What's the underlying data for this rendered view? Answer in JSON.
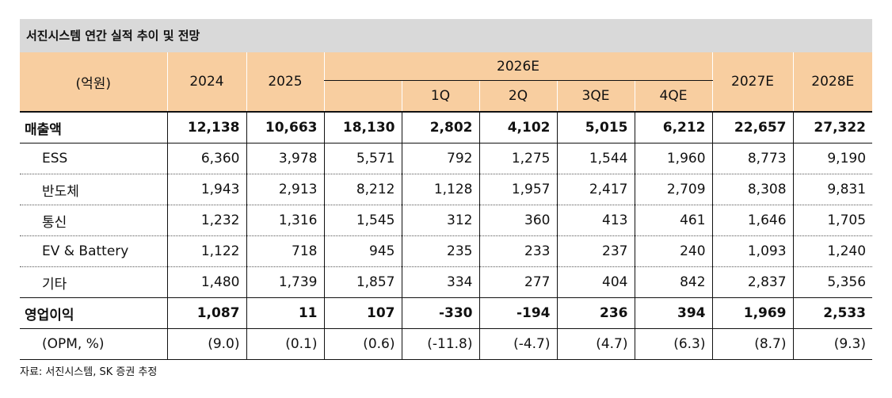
{
  "title": "서진시스템 연간 실적 추이 및 전망",
  "header": {
    "unit_label": "(억원)",
    "years": [
      "2024",
      "2025"
    ],
    "group_label": "2026E",
    "quarters": [
      "1Q",
      "2Q",
      "3QE",
      "4QE"
    ],
    "future_years": [
      "2027E",
      "2028E"
    ]
  },
  "rows": [
    {
      "label": "매출액",
      "values": [
        "12,138",
        "10,663",
        "18,130",
        "2,802",
        "4,102",
        "5,015",
        "6,212",
        "22,657",
        "27,322"
      ]
    },
    {
      "label": "ESS",
      "values": [
        "6,360",
        "3,978",
        "5,571",
        "792",
        "1,275",
        "1,544",
        "1,960",
        "8,773",
        "9,190"
      ]
    },
    {
      "label": "반도체",
      "values": [
        "1,943",
        "2,913",
        "8,212",
        "1,128",
        "1,957",
        "2,417",
        "2,709",
        "8,308",
        "9,831"
      ]
    },
    {
      "label": "통신",
      "values": [
        "1,232",
        "1,316",
        "1,545",
        "312",
        "360",
        "413",
        "461",
        "1,646",
        "1,705"
      ]
    },
    {
      "label": "EV & Battery",
      "values": [
        "1,122",
        "718",
        "945",
        "235",
        "233",
        "237",
        "240",
        "1,093",
        "1,240"
      ]
    },
    {
      "label": "기타",
      "values": [
        "1,480",
        "1,739",
        "1,857",
        "334",
        "277",
        "404",
        "842",
        "2,837",
        "5,356"
      ]
    },
    {
      "label": "영업이익",
      "values": [
        "1,087",
        "11",
        "107",
        "-330",
        "-194",
        "236",
        "394",
        "1,969",
        "2,533"
      ]
    },
    {
      "label": "(OPM, %)",
      "values": [
        "(9.0)",
        "(0.1)",
        "(0.6)",
        "(-11.8)",
        "(-4.7)",
        "(4.7)",
        "(6.3)",
        "(8.7)",
        "(9.3)"
      ]
    }
  ],
  "source": "자료: 서진시스템, SK 증권 추정"
}
